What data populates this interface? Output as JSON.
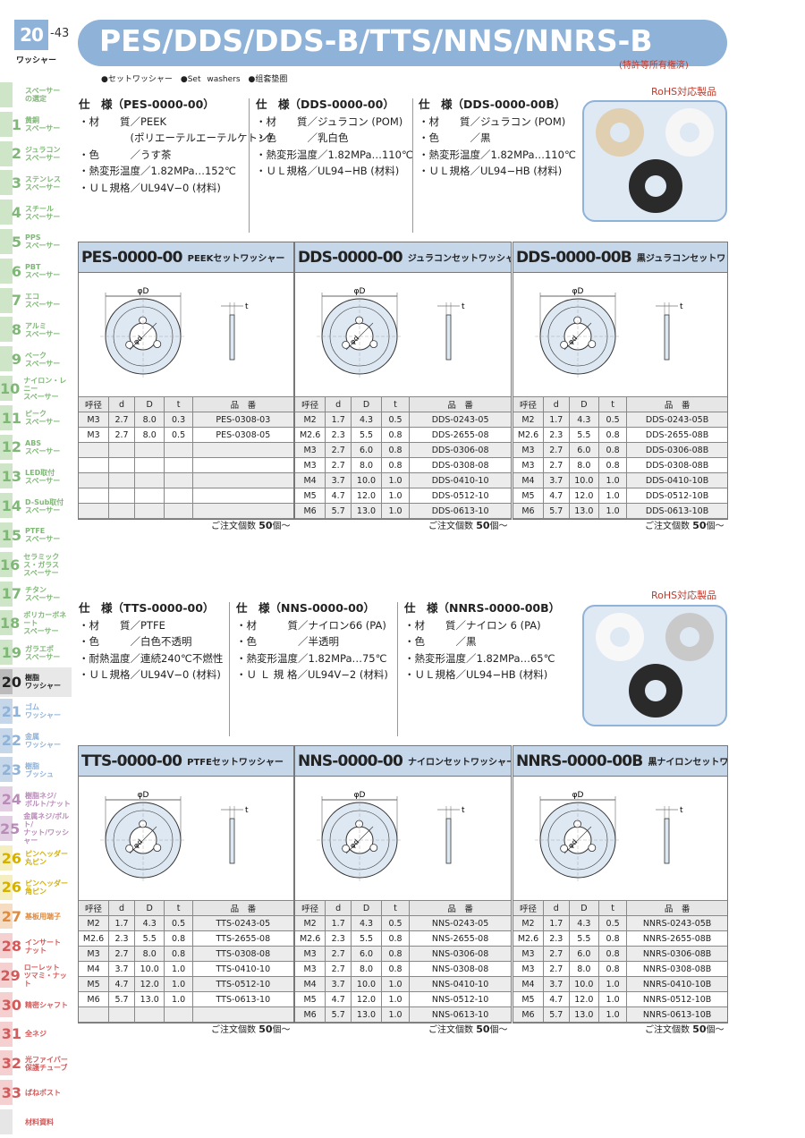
{
  "page": {
    "num": "20",
    "sub": "-43",
    "label": "ワッシャー"
  },
  "title": "PES/DDS/DDS-B/TTS/NNS/NNRS-B",
  "patent": "(特許等所有権済)",
  "sets": "●セットワッシャー　●Set washers　●组套垫圈",
  "rohs": "RoHS対応製品",
  "order": "ご注文個数",
  "order_num": "50",
  "order_unit": "個〜",
  "sidebar": [
    {
      "n": "",
      "l": "スペーサー\nの選定",
      "c": "#cfe5c8"
    },
    {
      "n": "1",
      "l": "黄銅\nスペーサー",
      "c": "#cfe5c8"
    },
    {
      "n": "2",
      "l": "ジュラコン\nスペーサー",
      "c": "#cfe5c8"
    },
    {
      "n": "3",
      "l": "ステンレス\nスペーサー",
      "c": "#cfe5c8"
    },
    {
      "n": "4",
      "l": "スチール\nスペーサー",
      "c": "#cfe5c8"
    },
    {
      "n": "5",
      "l": "PPS\nスペーサー",
      "c": "#cfe5c8"
    },
    {
      "n": "6",
      "l": "PBT\nスペーサー",
      "c": "#cfe5c8"
    },
    {
      "n": "7",
      "l": "エコ\nスペーサー",
      "c": "#cfe5c8"
    },
    {
      "n": "8",
      "l": "アルミ\nスペーサー",
      "c": "#cfe5c8"
    },
    {
      "n": "9",
      "l": "ベーク\nスペーサー",
      "c": "#cfe5c8"
    },
    {
      "n": "10",
      "l": "ナイロン・レニー\nスペーサー",
      "c": "#cfe5c8"
    },
    {
      "n": "11",
      "l": "ピーク\nスペーサー",
      "c": "#cfe5c8"
    },
    {
      "n": "12",
      "l": "ABS\nスペーサー",
      "c": "#cfe5c8"
    },
    {
      "n": "13",
      "l": "LED取付\nスペーサー",
      "c": "#cfe5c8"
    },
    {
      "n": "14",
      "l": "D-Sub取付\nスペーサー",
      "c": "#cfe5c8"
    },
    {
      "n": "15",
      "l": "PTFE\nスペーサー",
      "c": "#cfe5c8"
    },
    {
      "n": "16",
      "l": "セラミックス・ガラス\nスペーサー",
      "c": "#cfe5c8"
    },
    {
      "n": "17",
      "l": "チタン\nスペーサー",
      "c": "#cfe5c8"
    },
    {
      "n": "18",
      "l": "ポリカーボネート\nスペーサー",
      "c": "#cfe5c8"
    },
    {
      "n": "19",
      "l": "ガラエポ\nスペーサー",
      "c": "#cfe5c8"
    },
    {
      "n": "20",
      "l": "樹脂\nワッシャー",
      "c": "#bbbbbb"
    },
    {
      "n": "21",
      "l": "ゴム\nワッシャー",
      "c": "#c6d7ea"
    },
    {
      "n": "22",
      "l": "金属\nワッシャー",
      "c": "#c6d7ea"
    },
    {
      "n": "23",
      "l": "樹脂\nブッシュ",
      "c": "#c6d7ea"
    },
    {
      "n": "24",
      "l": "樹脂ネジ/\nボルト/ナット",
      "c": "#e3cfe3"
    },
    {
      "n": "25",
      "l": "金属ネジ/ボルト/\nナット/ワッシャー",
      "c": "#e3cfe3"
    },
    {
      "n": "26",
      "l": "ピンヘッダー\n丸ピン",
      "c": "#f5efc0"
    },
    {
      "n": "26",
      "l": "ピンヘッダー\n角ピン",
      "c": "#f5efc0"
    },
    {
      "n": "27",
      "l": "基板用端子",
      "c": "#f7dcc4"
    },
    {
      "n": "28",
      "l": "インサート\nナット",
      "c": "#f5d0d0"
    },
    {
      "n": "29",
      "l": "ローレット\nツマミ・ナット",
      "c": "#f5d0d0"
    },
    {
      "n": "30",
      "l": "精密シャフト",
      "c": "#f5d0d0"
    },
    {
      "n": "31",
      "l": "全ネジ",
      "c": "#f5d0d0"
    },
    {
      "n": "32",
      "l": "光ファイバー\n保護チューブ",
      "c": "#f5d0d0"
    },
    {
      "n": "33",
      "l": "ばねポスト",
      "c": "#f5d0d0"
    },
    {
      "n": "",
      "l": "材料資料",
      "c": "#e6e6e6"
    }
  ],
  "specs1": [
    {
      "h": "仕　様（PES-0000-00）",
      "lines": [
        "・材　　質／PEEK",
        "　　　　　(ポリエーテルエーテルケトン)",
        "・色　　　／うす茶",
        "・熱変形温度／1.82MPa…152℃",
        "・ＵＬ規格／UL94V−0 (材料)"
      ]
    },
    {
      "h": "仕　様（DDS-0000-00）",
      "lines": [
        "・材　　質／ジュラコン (POM)",
        "・色　　　／乳白色",
        "・熱変形温度／1.82MPa…110℃",
        "・ＵＬ規格／UL94−HB (材料)"
      ]
    },
    {
      "h": "仕　様（DDS-0000-00B）",
      "lines": [
        "・材　　質／ジュラコン (POM)",
        "・色　　　／黒",
        "・熱変形温度／1.82MPa…110℃",
        "・ＵＬ規格／UL94−HB (材料)"
      ]
    }
  ],
  "specs2": [
    {
      "h": "仕　様（TTS-0000-00）",
      "lines": [
        "・材　　質／PTFE",
        "・色　　　／白色不透明",
        "・耐熱温度／連続240℃不燃性",
        "・ＵＬ規格／UL94V−0 (材料)"
      ]
    },
    {
      "h": "仕　様（NNS-0000-00）",
      "lines": [
        "・材　　　質／ナイロン66 (PA)",
        "・色　　　　／半透明",
        "・熱変形温度／1.82MPa…75℃",
        "・Ｕ Ｌ 規 格／UL94V−2 (材料)"
      ]
    },
    {
      "h": "仕　様（NNRS-0000-00B）",
      "lines": [
        "・材　　質／ナイロン 6 (PA)",
        "・色　　　／黒",
        "・熱変形温度／1.82MPa…65℃",
        "・ＵＬ規格／UL94−HB (材料)"
      ]
    }
  ],
  "labels": {
    "phiD": "φD",
    "t": "t",
    "phid": "φd"
  },
  "headers": [
    "呼径",
    "d",
    "D",
    "t",
    "品　番"
  ],
  "panels": [
    {
      "code": "PES-0000-00",
      "name": "PEEKセットワッシャー",
      "rows": [
        [
          "M3",
          "2.7",
          "8.0",
          "0.3",
          "PES-0308-03"
        ],
        [
          "M3",
          "2.7",
          "8.0",
          "0.5",
          "PES-0308-05"
        ],
        [
          "",
          "",
          "",
          "",
          ""
        ],
        [
          "",
          "",
          "",
          "",
          ""
        ],
        [
          "",
          "",
          "",
          "",
          ""
        ],
        [
          "",
          "",
          "",
          "",
          ""
        ],
        [
          "",
          "",
          "",
          "",
          ""
        ]
      ]
    },
    {
      "code": "DDS-0000-00",
      "name": "ジュラコンセットワッシャー",
      "rows": [
        [
          "M2",
          "1.7",
          "4.3",
          "0.5",
          "DDS-0243-05"
        ],
        [
          "M2.6",
          "2.3",
          "5.5",
          "0.8",
          "DDS-2655-08"
        ],
        [
          "M3",
          "2.7",
          "6.0",
          "0.8",
          "DDS-0306-08"
        ],
        [
          "M3",
          "2.7",
          "8.0",
          "0.8",
          "DDS-0308-08"
        ],
        [
          "M4",
          "3.7",
          "10.0",
          "1.0",
          "DDS-0410-10"
        ],
        [
          "M5",
          "4.7",
          "12.0",
          "1.0",
          "DDS-0512-10"
        ],
        [
          "M6",
          "5.7",
          "13.0",
          "1.0",
          "DDS-0613-10"
        ]
      ]
    },
    {
      "code": "DDS-0000-00B",
      "name": "黒ジュラコンセットワッシャー",
      "rows": [
        [
          "M2",
          "1.7",
          "4.3",
          "0.5",
          "DDS-0243-05B"
        ],
        [
          "M2.6",
          "2.3",
          "5.5",
          "0.8",
          "DDS-2655-08B"
        ],
        [
          "M3",
          "2.7",
          "6.0",
          "0.8",
          "DDS-0306-08B"
        ],
        [
          "M3",
          "2.7",
          "8.0",
          "0.8",
          "DDS-0308-08B"
        ],
        [
          "M4",
          "3.7",
          "10.0",
          "1.0",
          "DDS-0410-10B"
        ],
        [
          "M5",
          "4.7",
          "12.0",
          "1.0",
          "DDS-0512-10B"
        ],
        [
          "M6",
          "5.7",
          "13.0",
          "1.0",
          "DDS-0613-10B"
        ]
      ]
    },
    {
      "code": "TTS-0000-00",
      "name": "PTFEセットワッシャー",
      "rows": [
        [
          "M2",
          "1.7",
          "4.3",
          "0.5",
          "TTS-0243-05"
        ],
        [
          "M2.6",
          "2.3",
          "5.5",
          "0.8",
          "TTS-2655-08"
        ],
        [
          "M3",
          "2.7",
          "8.0",
          "0.8",
          "TTS-0308-08"
        ],
        [
          "M4",
          "3.7",
          "10.0",
          "1.0",
          "TTS-0410-10"
        ],
        [
          "M5",
          "4.7",
          "12.0",
          "1.0",
          "TTS-0512-10"
        ],
        [
          "M6",
          "5.7",
          "13.0",
          "1.0",
          "TTS-0613-10"
        ],
        [
          "",
          "",
          "",
          "",
          ""
        ]
      ]
    },
    {
      "code": "NNS-0000-00",
      "name": "ナイロンセットワッシャー",
      "rows": [
        [
          "M2",
          "1.7",
          "4.3",
          "0.5",
          "NNS-0243-05"
        ],
        [
          "M2.6",
          "2.3",
          "5.5",
          "0.8",
          "NNS-2655-08"
        ],
        [
          "M3",
          "2.7",
          "6.0",
          "0.8",
          "NNS-0306-08"
        ],
        [
          "M3",
          "2.7",
          "8.0",
          "0.8",
          "NNS-0308-08"
        ],
        [
          "M4",
          "3.7",
          "10.0",
          "1.0",
          "NNS-0410-10"
        ],
        [
          "M5",
          "4.7",
          "12.0",
          "1.0",
          "NNS-0512-10"
        ],
        [
          "M6",
          "5.7",
          "13.0",
          "1.0",
          "NNS-0613-10"
        ]
      ]
    },
    {
      "code": "NNRS-0000-00B",
      "name": "黒ナイロンセットワッシャー",
      "rows": [
        [
          "M2",
          "1.7",
          "4.3",
          "0.5",
          "NNRS-0243-05B"
        ],
        [
          "M2.6",
          "2.3",
          "5.5",
          "0.8",
          "NNRS-2655-08B"
        ],
        [
          "M3",
          "2.7",
          "6.0",
          "0.8",
          "NNRS-0306-08B"
        ],
        [
          "M3",
          "2.7",
          "8.0",
          "0.8",
          "NNRS-0308-08B"
        ],
        [
          "M4",
          "3.7",
          "10.0",
          "1.0",
          "NNRS-0410-10B"
        ],
        [
          "M5",
          "4.7",
          "12.0",
          "1.0",
          "NNRS-0512-10B"
        ],
        [
          "M6",
          "5.7",
          "13.0",
          "1.0",
          "NNRS-0613-10B"
        ]
      ]
    }
  ]
}
